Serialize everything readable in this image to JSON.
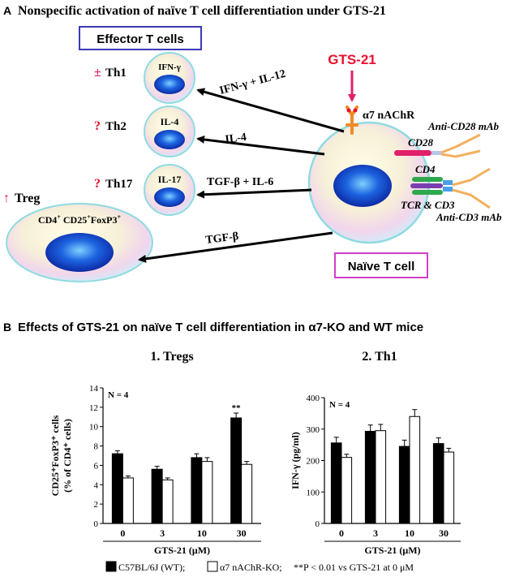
{
  "panel_a": {
    "letter": "A",
    "title": "Nonspecific activation of naïve T cell differentiation under GTS-21",
    "effector_box": "Effector T cells",
    "naive_box": "Naïve T cell",
    "drug": "GTS-21",
    "receptor": "α7 nAChR",
    "colors": {
      "drug": "#e8112d",
      "arrow_drug": "#e0206a",
      "symbol": "#e0206a",
      "box_effector": "#3a3ab8",
      "box_naive": "#d040c8"
    },
    "cells": [
      {
        "symbol": "±",
        "name": "Th1",
        "label": "IFN-γ",
        "arrow_label": "IFN-γ + IL-12"
      },
      {
        "symbol": "?",
        "name": "Th2",
        "label": "IL-4",
        "arrow_label": "IL-4"
      },
      {
        "symbol": "?",
        "name": "Th17",
        "label": "IL-17",
        "arrow_label": "TGF-β + IL-6"
      }
    ],
    "treg": {
      "symbol": "↑",
      "name": "Treg",
      "label_main": "CD4",
      "label_sup1": "+",
      "label_mid1": " CD25",
      "label_sup2": "+",
      "label_mid2": "FoxP3",
      "label_sup3": "+",
      "arrow_label": "TGF-β"
    },
    "antibodies": {
      "cd28_mab": "Anti-CD28 mAb",
      "cd28": "CD28",
      "cd4": "CD4",
      "tcr": "TCR & CD3",
      "cd3_mab": "Anti-CD3 mAb"
    }
  },
  "panel_b": {
    "letter": "B",
    "title": "Effects of GTS-21 on naïve T cell differentiation in α7-KO and WT mice",
    "legend": {
      "wt": "C57BL/6J (WT);",
      "ko": "α7 nAChR-KO;",
      "note": "**P < 0.01 vs GTS-21 at 0 μM"
    }
  },
  "chart_data": [
    {
      "type": "bar",
      "title": "1. Tregs",
      "annotation": "N = 4",
      "ylabel_line1": "CD25⁺FoxP3⁺ cells",
      "ylabel_line2": "(% of CD4⁺ cells)",
      "xlabel": "GTS-21 (μM)",
      "categories": [
        "0",
        "3",
        "10",
        "30"
      ],
      "ylim": [
        0,
        14
      ],
      "yticks": [
        "0",
        "2",
        "4",
        "6",
        "8",
        "10",
        "12",
        "14"
      ],
      "series": [
        {
          "name": "C57BL/6J (WT)",
          "color": "#000000",
          "values": [
            7.2,
            5.6,
            6.8,
            10.9
          ],
          "errors": [
            0.3,
            0.3,
            0.4,
            0.5
          ]
        },
        {
          "name": "α7 nAChR-KO",
          "color": "#ffffff",
          "values": [
            4.7,
            4.5,
            6.4,
            6.1
          ],
          "errors": [
            0.2,
            0.2,
            0.4,
            0.3
          ]
        }
      ],
      "significance": [
        {
          "category_index": 3,
          "series_index": 0,
          "label": "**"
        }
      ]
    },
    {
      "type": "bar",
      "title": "2. Th1",
      "annotation": "N = 4",
      "ylabel_line1": "IFN-γ (pg/ml)",
      "ylabel_line2": "",
      "xlabel": "GTS-21 (μM)",
      "categories": [
        "0",
        "3",
        "10",
        "30"
      ],
      "ylim": [
        0,
        400
      ],
      "yticks": [
        "0",
        "100",
        "200",
        "300",
        "400"
      ],
      "series": [
        {
          "name": "C57BL/6J (WT)",
          "color": "#000000",
          "values": [
            256,
            293,
            245,
            254
          ],
          "errors": [
            18,
            20,
            20,
            18
          ]
        },
        {
          "name": "α7 nAChR-KO",
          "color": "#ffffff",
          "values": [
            210,
            295,
            340,
            227
          ],
          "errors": [
            10,
            20,
            22,
            12
          ]
        }
      ],
      "significance": []
    }
  ]
}
